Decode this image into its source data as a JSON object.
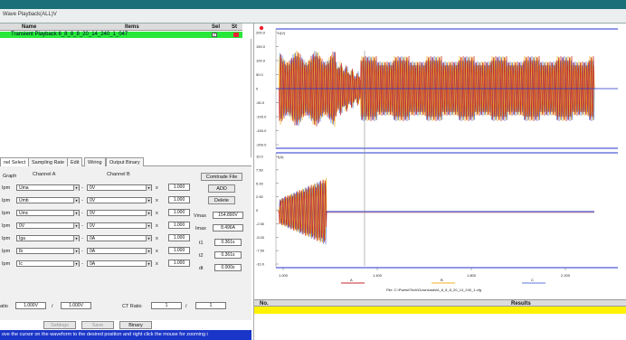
{
  "window": {
    "title": "Wave Playback(ALL)V"
  },
  "table": {
    "headers": [
      "Name",
      "Items",
      "Sel",
      "St"
    ],
    "row": {
      "name": "Transient Playback",
      "item": "6_8_8_8_20_14_240_1_047",
      "selected": "✓"
    }
  },
  "tabs": [
    "nel Select",
    "Sampling Rate",
    "Edit",
    "Wiring",
    "Output Binary"
  ],
  "panel": {
    "graph_label": "Graph",
    "channel_a": "Channel A",
    "channel_b": "Channel B",
    "row_labels": [
      "Ipm",
      "Ipm",
      "Ipm",
      "Ipm",
      "Ipm",
      "Ipm",
      "Ipm"
    ],
    "rows": [
      {
        "a": "Uma",
        "b": "0V",
        "scale": "1.000"
      },
      {
        "a": "Umb",
        "b": "0V",
        "scale": "1.000"
      },
      {
        "a": "Umc",
        "b": "0V",
        "scale": "1.000"
      },
      {
        "a": "0V",
        "b": "0V",
        "scale": "1.000"
      },
      {
        "a": "Iga",
        "b": "0A",
        "scale": "1.000"
      },
      {
        "a": "Ib",
        "b": "0A",
        "scale": "1.000"
      },
      {
        "a": "Ic",
        "b": "0A",
        "scale": "1.000"
      }
    ],
    "buttons": {
      "comtrade": "Comtrade File",
      "add": "ADD",
      "delete": "Delete"
    },
    "measure_labels": {
      "vmax": "Vmax",
      "imax": "Imax",
      "t1": "t1",
      "t2": "t2",
      "dt": "dt"
    },
    "measure_values": {
      "vmax": "154.890V",
      "imax": "8.496A",
      "t1": "0.361s",
      "t2": "0.361s",
      "dt": "0.000s"
    },
    "ratio_label": "atio",
    "ratio_values": [
      "1.000V",
      "1.000V"
    ],
    "ct_ratio_label": "CT Ratio",
    "ct_values": [
      "1",
      "1"
    ]
  },
  "bottom_buttons": [
    "Settings",
    "Save",
    "Binary"
  ],
  "status_text": "ove the cursor on the waveform to the desired position and right click the mouse for zooming i",
  "chart_data": [
    {
      "type": "line",
      "title": "",
      "panel": "voltage",
      "legend_label": "U(V)",
      "y_ticks": [
        "200.0",
        "150.0",
        "100.0",
        "50.0",
        "0",
        "-50.0",
        "-100.0",
        "-150.0",
        "-200.0"
      ],
      "ylim": [
        -200,
        200
      ],
      "series": [
        {
          "name": "A",
          "color": "#c4282a"
        },
        {
          "name": "B",
          "color": "#f0b020"
        },
        {
          "name": "C",
          "color": "#5b78d8"
        }
      ]
    },
    {
      "type": "line",
      "title": "",
      "panel": "current",
      "legend_label": "I(A)",
      "y_ticks": [
        "10.0",
        "7.50",
        "5.00",
        "2.50",
        "0",
        "-2.50",
        "-5.00",
        "-7.50",
        "-10.0"
      ],
      "ylim": [
        -10,
        10
      ],
      "x_ticks": [
        "1.000",
        "1.400",
        "1.800",
        "2.200"
      ],
      "series": [
        {
          "name": "A",
          "color": "#c4282a"
        },
        {
          "name": "B",
          "color": "#f0b020"
        },
        {
          "name": "C",
          "color": "#5b78d8"
        }
      ]
    }
  ],
  "file_caption": "File: C:\\Pwest\\Tech\\Downloads\\6_8_8_8_20_14_240_1.cfg",
  "legend": [
    "A",
    "B",
    "C"
  ],
  "results": {
    "headers": [
      "No.",
      "Results"
    ]
  },
  "colors": {
    "status_bar": "#1a36c8",
    "selected_row": "#27e83a",
    "results_row": "#fff200",
    "window_accent": "#1a6f78"
  }
}
